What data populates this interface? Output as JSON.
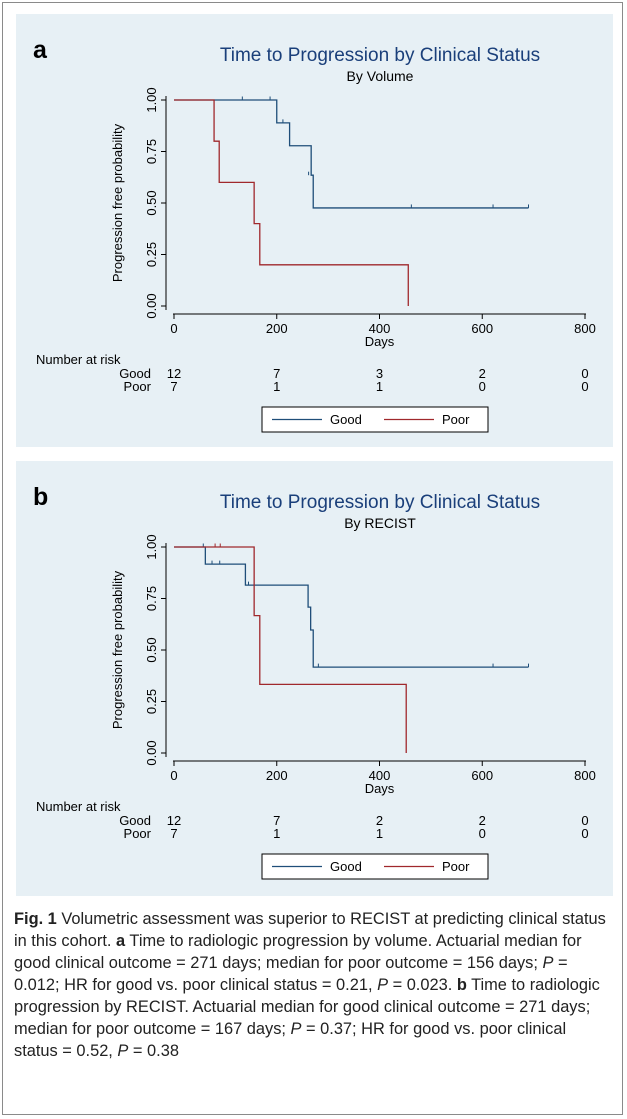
{
  "chart_data": [
    {
      "type": "line",
      "subtype": "kaplan-meier",
      "panel_label": "a",
      "title": "Time to Progression by Clinical Status",
      "subtitle": "By Volume",
      "xlabel": "Days",
      "ylabel": "Progression free probability",
      "xlim": [
        0,
        800
      ],
      "ylim": [
        0,
        1
      ],
      "xticks": [
        "0",
        "200",
        "400",
        "600",
        "800"
      ],
      "yticks": [
        "0.00",
        "0.25",
        "0.50",
        "0.75",
        "1.00"
      ],
      "grid": false,
      "legend_position": "bottom",
      "colors": {
        "Good": "#1f4e79",
        "Poor": "#a0282c"
      },
      "series": [
        {
          "name": "Good",
          "steps": [
            [
              0,
              1.0
            ],
            [
              200,
              0.889
            ],
            [
              225,
              0.778
            ],
            [
              267,
              0.635
            ],
            [
              271,
              0.476
            ],
            [
              690,
              0.476
            ]
          ],
          "censored": [
            [
              133,
              1.0
            ],
            [
              187,
              1.0
            ],
            [
              212,
              0.889
            ],
            [
              262,
              0.635
            ],
            [
              462,
              0.476
            ],
            [
              621,
              0.476
            ],
            [
              690,
              0.476
            ]
          ]
        },
        {
          "name": "Poor",
          "steps": [
            [
              0,
              1.0
            ],
            [
              78,
              0.8
            ],
            [
              88,
              0.6
            ],
            [
              156,
              0.4
            ],
            [
              167,
              0.2
            ],
            [
              456,
              0.2
            ],
            [
              456,
              0.0
            ]
          ],
          "censored": []
        }
      ],
      "risk_table": {
        "heading": "Number at risk",
        "times": [
          0,
          200,
          400,
          600,
          800
        ],
        "rows": [
          {
            "name": "Good",
            "values": [
              "12",
              "7",
              "3",
              "2",
              "0"
            ]
          },
          {
            "name": "Poor",
            "values": [
              "7",
              "1",
              "1",
              "0",
              "0"
            ]
          }
        ]
      }
    },
    {
      "type": "line",
      "subtype": "kaplan-meier",
      "panel_label": "b",
      "title": "Time to Progression by Clinical Status",
      "subtitle": "By RECIST",
      "xlabel": "Days",
      "ylabel": "Progression free probability",
      "xlim": [
        0,
        800
      ],
      "ylim": [
        0,
        1
      ],
      "xticks": [
        "0",
        "200",
        "400",
        "600",
        "800"
      ],
      "yticks": [
        "0.00",
        "0.25",
        "0.50",
        "0.75",
        "1.00"
      ],
      "grid": false,
      "legend_position": "bottom",
      "colors": {
        "Good": "#1f4e79",
        "Poor": "#a0282c"
      },
      "series": [
        {
          "name": "Good",
          "steps": [
            [
              0,
              1.0
            ],
            [
              61,
              0.917
            ],
            [
              139,
              0.815
            ],
            [
              261,
              0.708
            ],
            [
              266,
              0.597
            ],
            [
              271,
              0.417
            ],
            [
              690,
              0.417
            ]
          ],
          "censored": [
            [
              57,
              1.0
            ],
            [
              74,
              0.917
            ],
            [
              89,
              0.917
            ],
            [
              145,
              0.815
            ],
            [
              281,
              0.417
            ],
            [
              621,
              0.417
            ],
            [
              690,
              0.417
            ]
          ]
        },
        {
          "name": "Poor",
          "steps": [
            [
              0,
              1.0
            ],
            [
              156,
              0.667
            ],
            [
              167,
              0.333
            ],
            [
              452,
              0.333
            ],
            [
              452,
              0.0
            ]
          ],
          "censored": [
            [
              80,
              1.0
            ],
            [
              90,
              1.0
            ]
          ]
        }
      ],
      "risk_table": {
        "heading": "Number at risk",
        "times": [
          0,
          200,
          400,
          600,
          800
        ],
        "rows": [
          {
            "name": "Good",
            "values": [
              "12",
              "7",
              "2",
              "2",
              "0"
            ]
          },
          {
            "name": "Poor",
            "values": [
              "7",
              "1",
              "1",
              "0",
              "0"
            ]
          }
        ]
      }
    }
  ],
  "caption": {
    "fig_label": "Fig. 1",
    "lead": " Volumetric assessment was superior to RECIST at predicting clinical status in this cohort. ",
    "a_label": "a",
    "a_text1": " Time to radiologic progression by volume. Actuarial median for good clinical outcome = 271 days; median for poor outcome = 156 days; ",
    "a_p1": "P",
    "a_text2": " = 0.012; HR for good vs. poor clinical status = 0.21, ",
    "a_p2": "P",
    "a_text3": " = 0.023. ",
    "b_label": "b",
    "b_text1": " Time to radiologic progression by RECIST. Actuarial median for good clinical outcome = 271 days; median for poor outcome = 167 days; ",
    "b_p1": "P",
    "b_text2": " = 0.37; HR for good vs. poor clinical status = 0.52, ",
    "b_p2": "P",
    "b_text3": " = 0.38"
  }
}
